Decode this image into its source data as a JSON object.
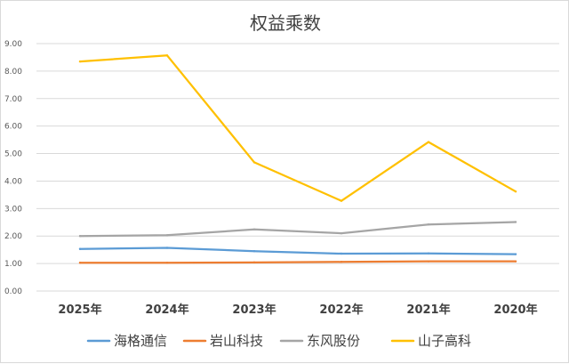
{
  "chart_data": {
    "type": "line",
    "title": "权益乘数",
    "categories": [
      "2025年",
      "2024年",
      "2023年",
      "2022年",
      "2021年",
      "2020年"
    ],
    "ylim": [
      0,
      9
    ],
    "yticks": [
      "0.00",
      "1.00",
      "2.00",
      "3.00",
      "4.00",
      "5.00",
      "6.00",
      "7.00",
      "8.00",
      "9.00"
    ],
    "grid": true,
    "legend_position": "bottom",
    "series": [
      {
        "name": "海格通信",
        "color": "#5b9bd5",
        "values": [
          1.53,
          1.57,
          1.45,
          1.36,
          1.37,
          1.34
        ]
      },
      {
        "name": "岩山科技",
        "color": "#ed7d31",
        "values": [
          1.03,
          1.03,
          1.04,
          1.06,
          1.08,
          1.08
        ]
      },
      {
        "name": "东风股份",
        "color": "#a5a5a5",
        "values": [
          2.0,
          2.03,
          2.24,
          2.1,
          2.42,
          2.51
        ]
      },
      {
        "name": "山子高科",
        "color": "#ffc000",
        "values": [
          8.35,
          8.57,
          4.68,
          3.28,
          5.42,
          3.62
        ]
      }
    ]
  }
}
